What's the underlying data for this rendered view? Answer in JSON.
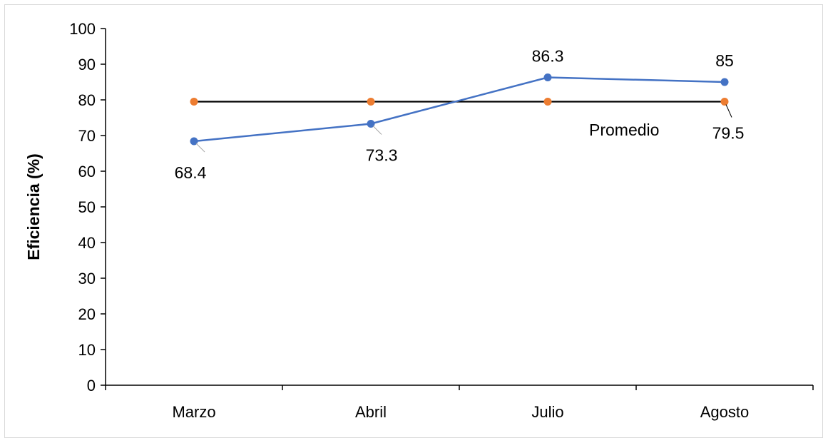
{
  "chart_data": {
    "type": "line",
    "categories": [
      "Marzo",
      "Abril",
      "Julio",
      "Agosto"
    ],
    "ylabel": "Eficiencia (%)",
    "xlabel": "",
    "ylim": [
      0,
      100
    ],
    "y_ticks": [
      "0",
      "10",
      "20",
      "30",
      "40",
      "50",
      "60",
      "70",
      "80",
      "90",
      "100"
    ],
    "grid": false,
    "series": [
      {
        "values": [
          68.4,
          73.3,
          86.3,
          85
        ],
        "labels": [
          "68.4",
          "73.3",
          "86.3",
          "85"
        ],
        "color": "#4472C4"
      },
      {
        "name": "Promedio",
        "values": [
          79.5,
          79.5,
          79.5,
          79.5
        ],
        "label": "79.5",
        "line_color": "#000000",
        "marker_color": "#ED7D31"
      }
    ]
  }
}
